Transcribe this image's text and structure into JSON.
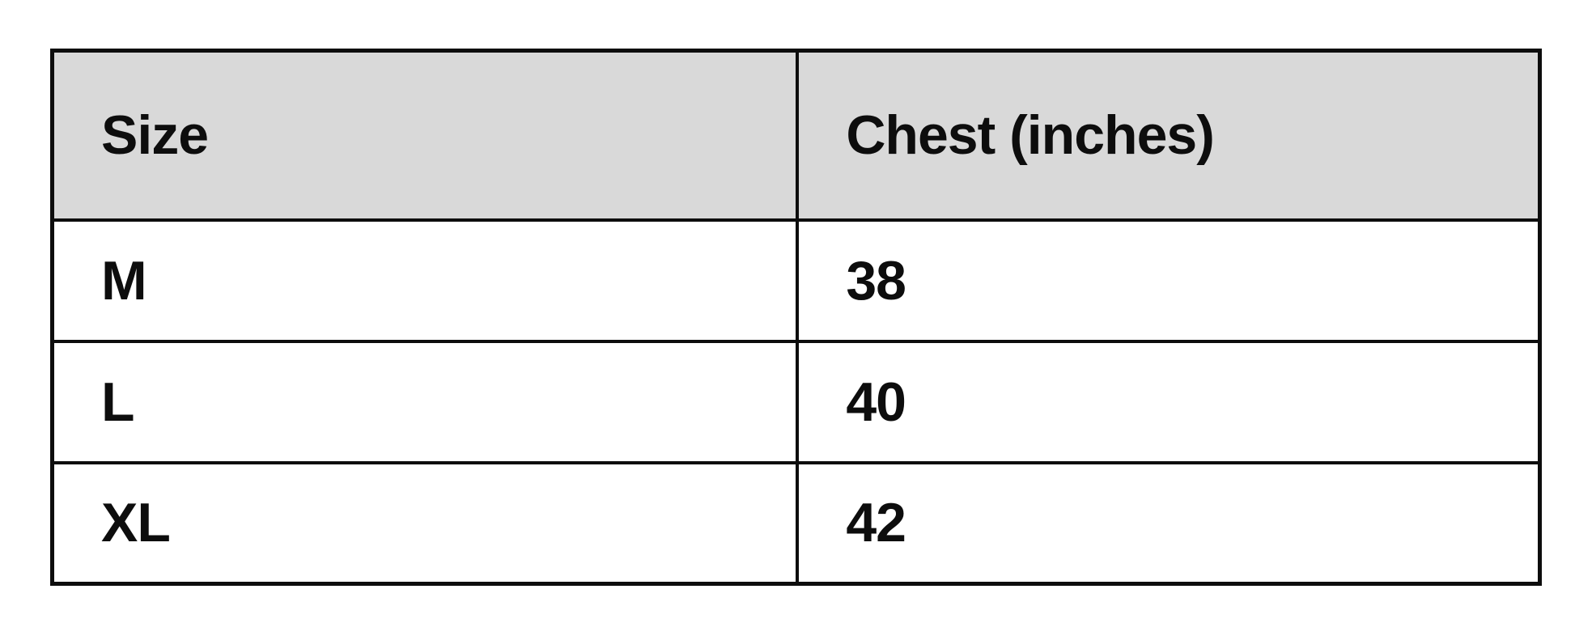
{
  "chart_data": {
    "type": "table",
    "title": "",
    "columns": [
      "Size",
      "Chest (inches)"
    ],
    "rows": [
      [
        "M",
        "38"
      ],
      [
        "L",
        "40"
      ],
      [
        "XL",
        "42"
      ]
    ]
  },
  "colors": {
    "header_bg": "#d9d9d9",
    "border": "#0d0d0d",
    "text": "#0d0d0d",
    "page_bg": "#ffffff"
  }
}
